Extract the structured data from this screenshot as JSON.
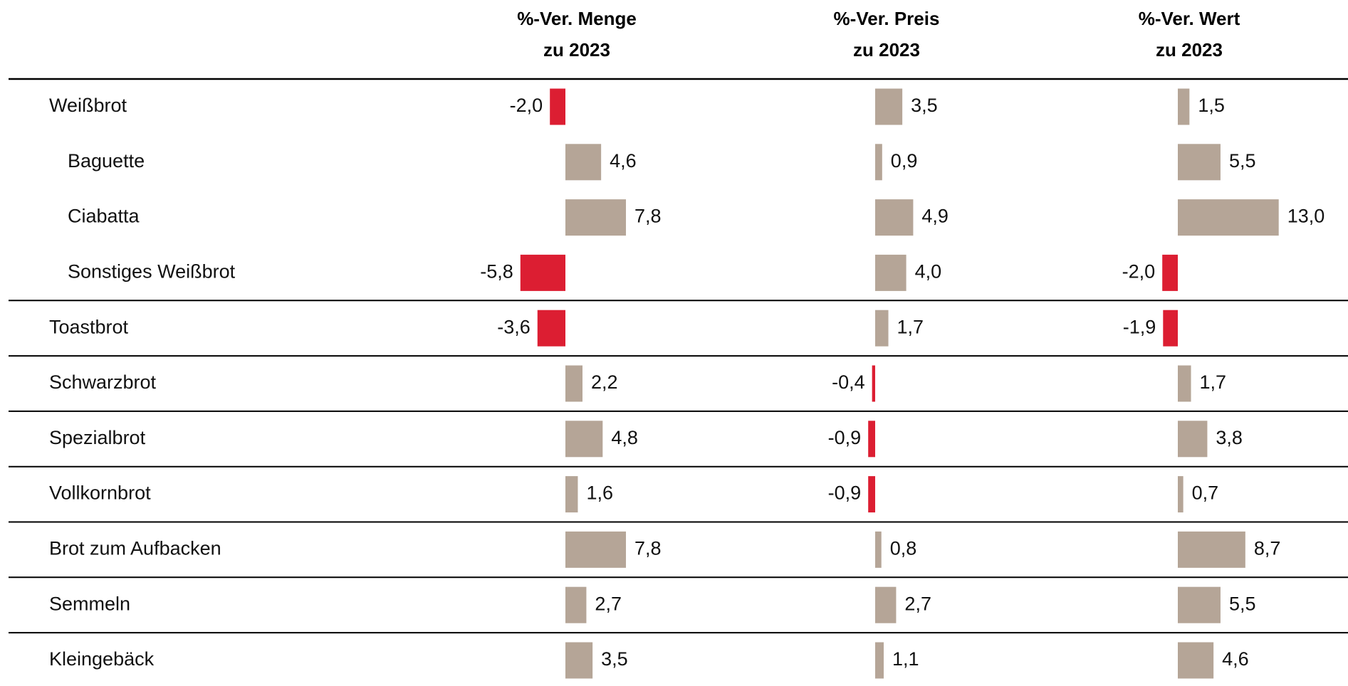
{
  "chart_data": {
    "type": "bar",
    "categories": [
      "Weißbrot",
      "Baguette",
      "Ciabatta",
      "Sonstiges Weißbrot",
      "Toastbrot",
      "Schwarzbrot",
      "Spezialbrot",
      "Vollkornbrot",
      "Brot zum Aufbacken",
      "Semmeln",
      "Kleingebäck"
    ],
    "level": [
      0,
      1,
      1,
      1,
      0,
      0,
      0,
      0,
      0,
      0,
      0
    ],
    "negative_color": "#dc1e32",
    "series": [
      {
        "name": "%-Ver. Menge\nzu 2023",
        "color": "#b5a597",
        "values": [
          -2.0,
          4.6,
          7.8,
          -5.8,
          -3.6,
          2.2,
          4.8,
          1.6,
          7.8,
          2.7,
          3.5
        ],
        "value_labels": [
          "-2,0",
          "4,6",
          "7,8",
          "-5,8",
          "-3,6",
          "2,2",
          "4,8",
          "1,6",
          "7,8",
          "2,7",
          "3,5"
        ]
      },
      {
        "name": "%-Ver. Preis\nzu 2023",
        "color": "#b5a597",
        "values": [
          3.5,
          0.9,
          4.9,
          4.0,
          1.7,
          -0.4,
          -0.9,
          -0.9,
          0.8,
          2.7,
          1.1
        ],
        "value_labels": [
          "3,5",
          "0,9",
          "4,9",
          "4,0",
          "1,7",
          "-0,4",
          "-0,9",
          "-0,9",
          "0,8",
          "2,7",
          "1,1"
        ]
      },
      {
        "name": "%-Ver. Wert\nzu 2023",
        "color": "#b5a597",
        "values": [
          1.5,
          5.5,
          13.0,
          -2.0,
          -1.9,
          1.7,
          3.8,
          0.7,
          8.7,
          5.5,
          4.6
        ],
        "value_labels": [
          "1,5",
          "5,5",
          "13,0",
          "-2,0",
          "-1,9",
          "1,7",
          "3,8",
          "0,7",
          "8,7",
          "5,5",
          "4,6"
        ]
      }
    ]
  }
}
